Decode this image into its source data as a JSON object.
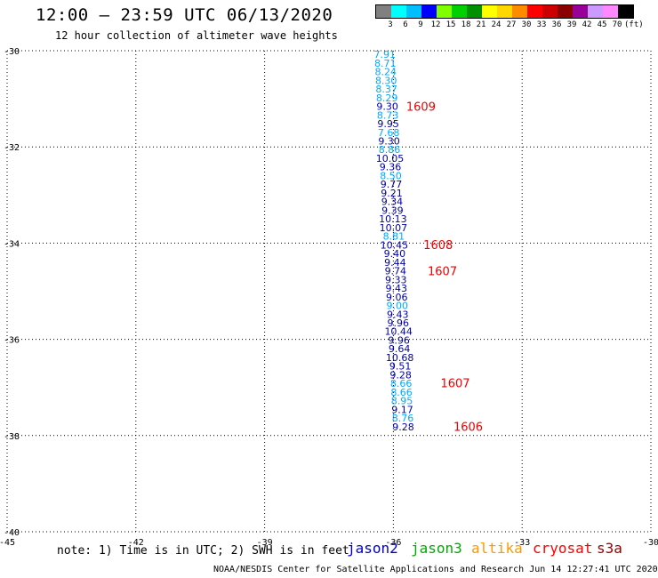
{
  "header": {
    "title": "12:00 – 23:59 UTC 06/13/2020",
    "subtitle": "12 hour collection of altimeter wave heights"
  },
  "legend": {
    "colors": [
      "#808080",
      "#00ffff",
      "#00bfff",
      "#0000ff",
      "#7fff00",
      "#00d000",
      "#009000",
      "#ffff00",
      "#ffd700",
      "#ff8c00",
      "#ff0000",
      "#cc0000",
      "#8b0000",
      "#990099",
      "#cc99ff",
      "#ff88ff",
      "#000000"
    ],
    "ticks": [
      "3",
      "6",
      "9",
      "12",
      "15",
      "18",
      "21",
      "24",
      "27",
      "30",
      "33",
      "36",
      "39",
      "42",
      "45",
      "70"
    ],
    "unit": "(ft)"
  },
  "map": {
    "lon_ticks": [
      -45,
      -42,
      -39,
      -36,
      -33,
      -30
    ],
    "lat_ticks": [
      -30,
      -32,
      -34,
      -36,
      -38,
      -40
    ],
    "lon_labels": [
      "-45",
      "-42",
      "-39",
      "-36",
      "-33",
      "-30"
    ],
    "lat_labels": [
      "-30",
      "-32",
      "-34",
      "-36",
      "-38",
      "-40"
    ],
    "lon_range": [
      -45,
      -30
    ],
    "lat_range": [
      -30,
      -40
    ]
  },
  "swh_points": [
    {
      "label": "7.91",
      "lat": -30.15,
      "lon": -36.2,
      "color": "#00aaff"
    },
    {
      "label": "8.71",
      "lat": -30.33,
      "lon": -36.19,
      "color": "#00aaff"
    },
    {
      "label": "8.24",
      "lat": -30.51,
      "lon": -36.18,
      "color": "#00aaff"
    },
    {
      "label": "8.30",
      "lat": -30.69,
      "lon": -36.17,
      "color": "#00aaff"
    },
    {
      "label": "8.37",
      "lat": -30.87,
      "lon": -36.16,
      "color": "#00aaff"
    },
    {
      "label": "8.29",
      "lat": -31.05,
      "lon": -36.15,
      "color": "#00aaff"
    },
    {
      "label": "9.30",
      "lat": -31.23,
      "lon": -36.14,
      "color": "#0000aa"
    },
    {
      "label": "8.73",
      "lat": -31.41,
      "lon": -36.13,
      "color": "#00aaff"
    },
    {
      "label": "9.95",
      "lat": -31.59,
      "lon": -36.12,
      "color": "#0000aa"
    },
    {
      "label": "7.68",
      "lat": -31.77,
      "lon": -36.11,
      "color": "#00aaff"
    },
    {
      "label": "9.30",
      "lat": -31.95,
      "lon": -36.1,
      "color": "#0000aa"
    },
    {
      "label": "8.86",
      "lat": -32.13,
      "lon": -36.09,
      "color": "#00aaff"
    },
    {
      "label": "10.05",
      "lat": -32.31,
      "lon": -36.08,
      "color": "#0000aa"
    },
    {
      "label": "9.36",
      "lat": -32.49,
      "lon": -36.07,
      "color": "#0000aa"
    },
    {
      "label": "8.50",
      "lat": -32.67,
      "lon": -36.06,
      "color": "#00aaff"
    },
    {
      "label": "9.77",
      "lat": -32.85,
      "lon": -36.05,
      "color": "#0000aa"
    },
    {
      "label": "9.21",
      "lat": -33.03,
      "lon": -36.04,
      "color": "#0000aa"
    },
    {
      "label": "9.34",
      "lat": -33.21,
      "lon": -36.03,
      "color": "#0000aa"
    },
    {
      "label": "9.39",
      "lat": -33.39,
      "lon": -36.02,
      "color": "#0000aa"
    },
    {
      "label": "10.13",
      "lat": -33.57,
      "lon": -36.01,
      "color": "#0000aa"
    },
    {
      "label": "10.07",
      "lat": -33.75,
      "lon": -36.0,
      "color": "#0000aa"
    },
    {
      "label": "8.81",
      "lat": -33.93,
      "lon": -35.99,
      "color": "#00aaff"
    },
    {
      "label": "10.45",
      "lat": -34.11,
      "lon": -35.98,
      "color": "#0000aa"
    },
    {
      "label": "9.40",
      "lat": -34.29,
      "lon": -35.97,
      "color": "#0000aa"
    },
    {
      "label": "9.44",
      "lat": -34.47,
      "lon": -35.96,
      "color": "#0000aa"
    },
    {
      "label": "9.74",
      "lat": -34.65,
      "lon": -35.95,
      "color": "#0000aa"
    },
    {
      "label": "9.33",
      "lat": -34.83,
      "lon": -35.94,
      "color": "#0000aa"
    },
    {
      "label": "9.43",
      "lat": -35.01,
      "lon": -35.93,
      "color": "#0000aa"
    },
    {
      "label": "9.06",
      "lat": -35.19,
      "lon": -35.92,
      "color": "#0000aa"
    },
    {
      "label": "9.00",
      "lat": -35.37,
      "lon": -35.91,
      "color": "#00aaff"
    },
    {
      "label": "9.43",
      "lat": -35.55,
      "lon": -35.9,
      "color": "#0000aa"
    },
    {
      "label": "9.96",
      "lat": -35.73,
      "lon": -35.89,
      "color": "#0000aa"
    },
    {
      "label": "10.44",
      "lat": -35.91,
      "lon": -35.88,
      "color": "#0000aa"
    },
    {
      "label": "9.96",
      "lat": -36.09,
      "lon": -35.87,
      "color": "#0000aa"
    },
    {
      "label": "9.64",
      "lat": -36.27,
      "lon": -35.86,
      "color": "#0000aa"
    },
    {
      "label": "10.68",
      "lat": -36.45,
      "lon": -35.85,
      "color": "#0000aa"
    },
    {
      "label": "9.51",
      "lat": -36.63,
      "lon": -35.84,
      "color": "#0000aa"
    },
    {
      "label": "9.28",
      "lat": -36.81,
      "lon": -35.83,
      "color": "#0000aa"
    },
    {
      "label": "8.66",
      "lat": -36.99,
      "lon": -35.82,
      "color": "#00aaff"
    },
    {
      "label": "8.66",
      "lat": -37.17,
      "lon": -35.81,
      "color": "#00aaff"
    },
    {
      "label": "8.95",
      "lat": -37.35,
      "lon": -35.8,
      "color": "#00aaff"
    },
    {
      "label": "9.17",
      "lat": -37.53,
      "lon": -35.79,
      "color": "#0000aa"
    },
    {
      "label": "8.76",
      "lat": -37.71,
      "lon": -35.78,
      "color": "#00aaff"
    },
    {
      "label": "9.28",
      "lat": -37.89,
      "lon": -35.77,
      "color": "#0000aa"
    }
  ],
  "time_labels": [
    {
      "label": "1609",
      "lat": -31.25,
      "lon": -35.7
    },
    {
      "label": "1608",
      "lat": -34.12,
      "lon": -35.3
    },
    {
      "label": "1607",
      "lat": -34.67,
      "lon": -35.2
    },
    {
      "label": "1607",
      "lat": -37.0,
      "lon": -34.9
    },
    {
      "label": "1606",
      "lat": -37.9,
      "lon": -34.6
    }
  ],
  "note": "note: 1) Time is in UTC; 2) SWH is in feet",
  "satellites": [
    {
      "name": "jason2",
      "color": "#0000cc"
    },
    {
      "name": "jason3",
      "color": "#00aa00"
    },
    {
      "name": "altika",
      "color": "#ff9900"
    },
    {
      "name": "cryosat",
      "color": "#ff0000"
    },
    {
      "name": "s3a",
      "color": "#990000"
    }
  ],
  "footer": "NOAA/NESDIS Center for Satellite Applications and Research   Jun 14 12:27:41 UTC 2020"
}
